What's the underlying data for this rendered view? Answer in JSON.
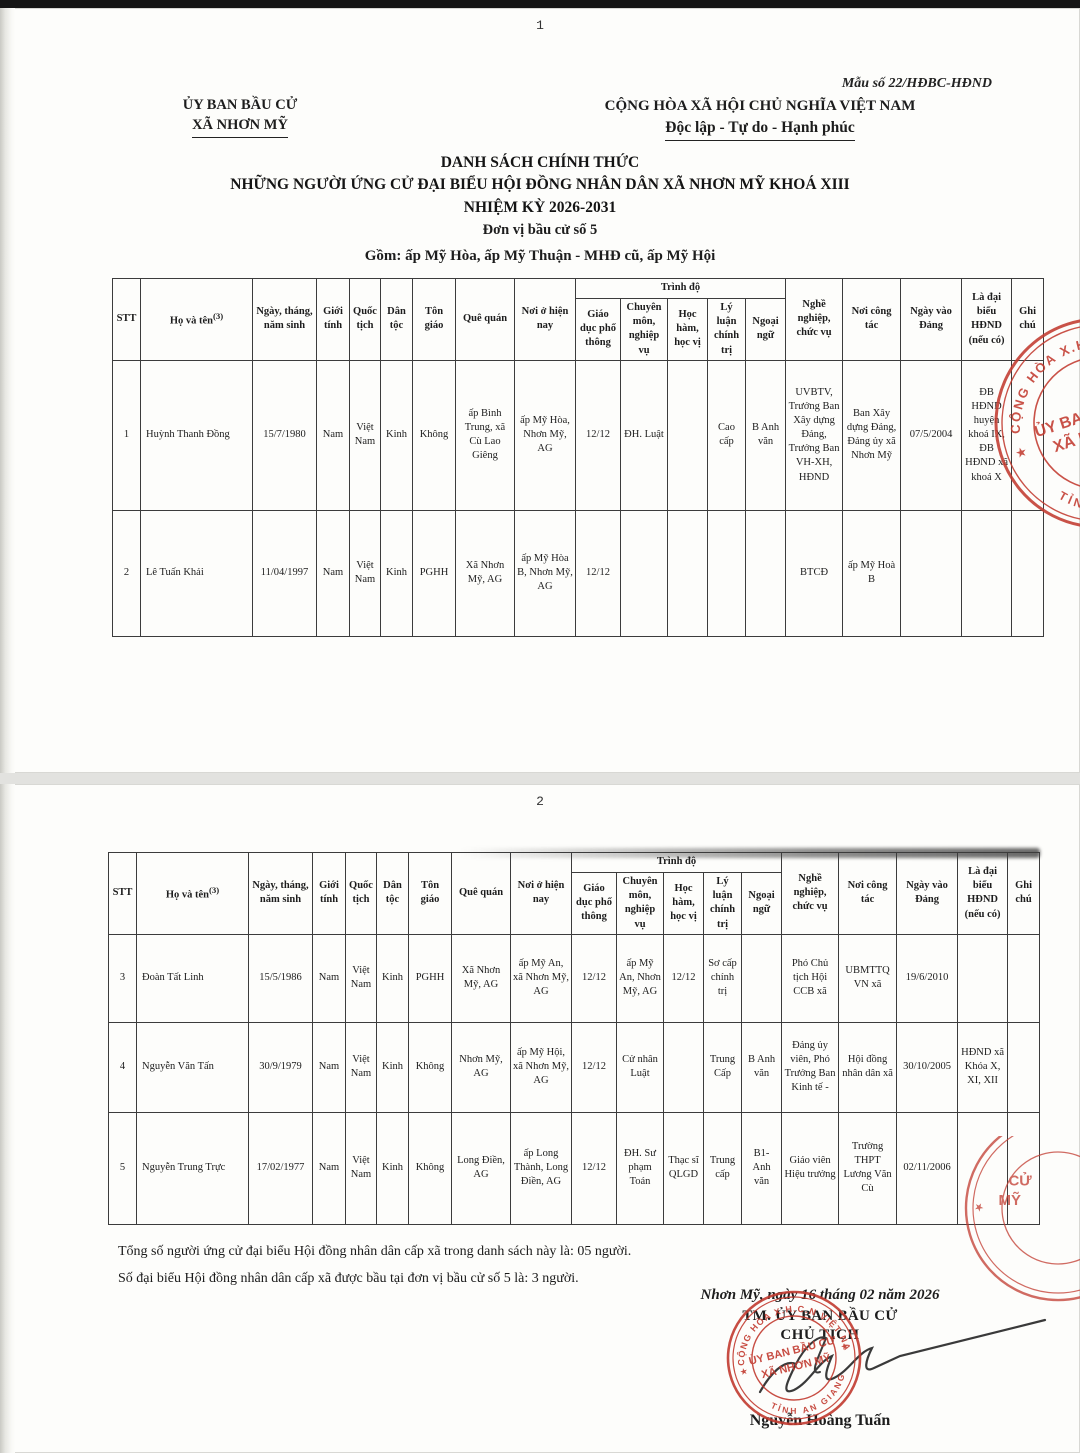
{
  "accent_red": "#c23b30",
  "page1": {
    "page_number": "1",
    "form_number": "Mẫu số 22/HĐBC-HĐND",
    "issuer_line1": "ỦY BAN BẦU CỬ",
    "issuer_line2": "XÃ NHƠN MỸ",
    "motto_line1": "CỘNG HÒA XÃ HỘI CHỦ NGHĨA VIỆT NAM",
    "motto_line2": "Độc lập - Tự do - Hạnh phúc",
    "title_line1": "DANH SÁCH CHÍNH THỨC",
    "title_line2": "NHỮNG NGƯỜI ỨNG CỬ ĐẠI BIỂU HỘI ĐỒNG NHÂN DÂN XÃ NHƠN MỸ KHOÁ XIII",
    "title_line3": "NHIỆM KỲ 2026-2031",
    "unit_line": "Đơn vị bầu cử số 5",
    "scope_line": "Gồm: ấp Mỹ Hòa, ấp Mỹ Thuận - MHĐ cũ, ấp Mỹ Hội"
  },
  "page2": {
    "page_number": "2",
    "summary_line1": "Tổng số người ứng cử đại biểu Hội đồng nhân dân cấp xã trong danh sách này là: 05 người.",
    "summary_line2": "Số đại biểu Hội đồng nhân dân cấp xã được bầu tại đơn vị bầu cử số 5  là: 3 người.",
    "sign_place_date": "Nhơn Mỹ, ngày 16 tháng 02 năm 2026",
    "sign_org": "TM. ỦY BAN BẦU CỬ",
    "sign_role": "CHỦ TỊCH",
    "signer_name": "Nguyễn Hoàng Tuấn"
  },
  "table": {
    "headers": {
      "stt": "STT",
      "ho_ten": "Họ và tên",
      "ho_ten_sup": "(3)",
      "ngay_sinh": "Ngày, tháng, năm sinh",
      "gioi_tinh": "Giới tính",
      "quoc_tich": "Quốc tịch",
      "dan_toc": "Dân tộc",
      "ton_giao": "Tôn giáo",
      "que_quan": "Quê quán",
      "noi_o": "Nơi ở hiện nay",
      "trinh_do_group": "Trình độ",
      "gdpt": "Giáo dục phổ thông",
      "chuyen_mon": "Chuyên môn, nghiệp vụ",
      "hoc_ham": "Học hàm, học vị",
      "ly_luan": "Lý luận chính trị",
      "ngoai_ngu": "Ngoại ngữ",
      "nghe_nghiep": "Nghề nghiệp, chức vụ",
      "noi_cong_tac": "Nơi công tác",
      "ngay_vao_dang": "Ngày vào Đảng",
      "dai_bieu_hdnd": "Là đại biểu HĐND (nếu có)",
      "ghi_chu": "Ghi chú"
    },
    "page1_rows": [
      [
        "1",
        "Huỳnh Thanh Đồng",
        "15/7/1980",
        "Nam",
        "Việt Nam",
        "Kinh",
        "Không",
        "ấp Bình Trung, xã Cù Lao Giêng",
        "ấp Mỹ Hòa, Nhơn Mỹ, AG",
        "12/12",
        "ĐH. Luật",
        "",
        "Cao cấp",
        "B Anh văn",
        "UVBTV, Trưởng Ban Xây dựng Đảng, Trưởng Ban VH-XH, HĐND",
        "Ban Xây dựng Đảng, Đảng ủy xã Nhơn Mỹ",
        "07/5/2004",
        "ĐB HĐND huyện khoá IX, ĐB HĐND xã khoá X",
        ""
      ],
      [
        "2",
        "Lê Tuấn Khải",
        "11/04/1997",
        "Nam",
        "Việt Nam",
        "Kinh",
        "PGHH",
        "Xã Nhơn Mỹ, AG",
        "ấp Mỹ Hòa B, Nhơn Mỹ, AG",
        "12/12",
        "",
        "",
        "",
        "",
        "BTCĐ",
        "ấp Mỹ Hoà B",
        "",
        "",
        ""
      ]
    ],
    "page2_rows": [
      [
        "3",
        "Đoàn Tất Linh",
        "15/5/1986",
        "Nam",
        "Việt Nam",
        "Kinh",
        "PGHH",
        "Xã Nhơn Mỹ, AG",
        "ấp Mỹ An, xã Nhơn Mỹ, AG",
        "12/12",
        "ấp Mỹ An, Nhơn Mỹ, AG",
        "12/12",
        "Sơ cấp chính trị",
        "",
        "Phó Chủ tịch Hội CCB xã",
        "UBMTTQ VN xã",
        "19/6/2010",
        "",
        ""
      ],
      [
        "4",
        "Nguyễn Văn Tấn",
        "30/9/1979",
        "Nam",
        "Việt Nam",
        "Kinh",
        "Không",
        "Nhơn Mỹ, AG",
        "ấp Mỹ Hội, xã Nhơn Mỹ, AG",
        "12/12",
        "Cử nhân Luật",
        "",
        "Trung Cấp",
        "B Anh văn",
        "Đảng ủy viên, Phó Trưởng Ban Kinh tế -",
        "Hội đồng nhân dân xã",
        "30/10/2005",
        "HĐND xã Khóa X, XI, XII",
        ""
      ],
      [
        "5",
        "Nguyễn Trung Trực",
        "17/02/1977",
        "Nam",
        "Việt Nam",
        "Kinh",
        "Không",
        "Long Điền, AG",
        "ấp Long Thành, Long Điền, AG",
        "12/12",
        "ĐH. Sư phạm Toán",
        "Thạc sĩ QLGD",
        "Trung cấp",
        "B1- Anh văn",
        "Giáo viên Hiệu trưởng",
        "Trường THPT Lương Văn Cù",
        "02/11/2006",
        "",
        ""
      ]
    ]
  },
  "stamp": {
    "center_line1": "ỦY BAN BẦU CỬ",
    "center_line2": "XÃ NHƠN MỸ",
    "ring_top": "CỘNG HÒA X.H.C.N VIỆT NAM",
    "ring_bottom": "TỈNH AN GIANG",
    "partial_text1": "CỬ",
    "partial_text2": "MỸ"
  }
}
